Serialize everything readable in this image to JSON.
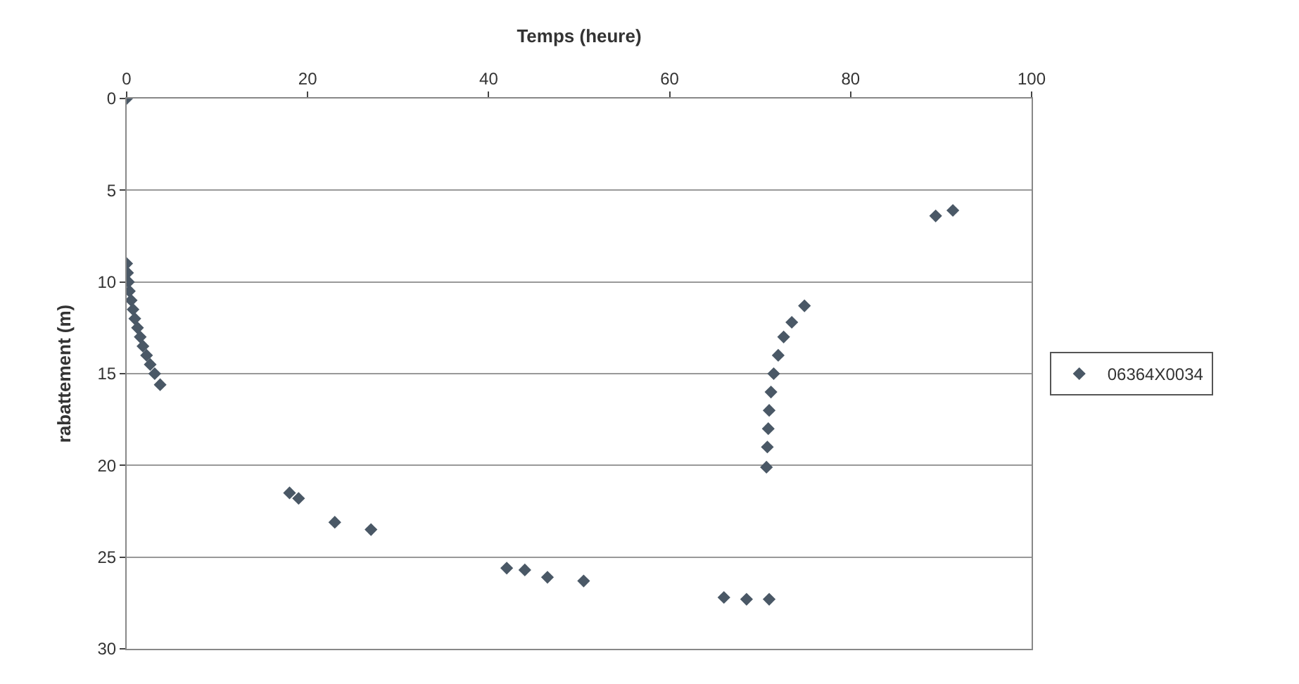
{
  "chart_data": {
    "type": "scatter",
    "xlabel": "Temps (heure)",
    "ylabel": "rabattement (m)",
    "xlim": [
      0,
      100
    ],
    "xticks": [
      0,
      20,
      40,
      60,
      80,
      100
    ],
    "ylim": [
      30,
      0
    ],
    "yticks": [
      0,
      5,
      10,
      15,
      20,
      25,
      30
    ],
    "grid": "y",
    "legend": "right",
    "marker": "diamond",
    "series": [
      {
        "name": "06364X0034",
        "color": "#4a5866",
        "x": [
          0,
          0,
          0.1,
          0.2,
          0.3,
          0.5,
          0.7,
          0.9,
          1.2,
          1.5,
          1.8,
          2.2,
          2.6,
          3.1,
          3.7,
          18,
          19,
          23,
          27,
          42,
          44,
          46.5,
          50.5,
          66,
          68.5,
          71,
          70.7,
          70.8,
          70.9,
          71,
          71.2,
          71.5,
          72,
          72.6,
          73.5,
          74.9,
          89.4,
          91.3
        ],
        "values": [
          0,
          9,
          9.5,
          10,
          10.5,
          11,
          11.5,
          12,
          12.5,
          13,
          13.5,
          14,
          14.5,
          15,
          15.6,
          21.5,
          21.8,
          23.1,
          23.5,
          25.6,
          25.7,
          26.1,
          26.3,
          27.2,
          27.3,
          27.3,
          20.1,
          19,
          18,
          17,
          16,
          15,
          14,
          13,
          12.2,
          11.3,
          6.4,
          6.1
        ]
      }
    ]
  }
}
